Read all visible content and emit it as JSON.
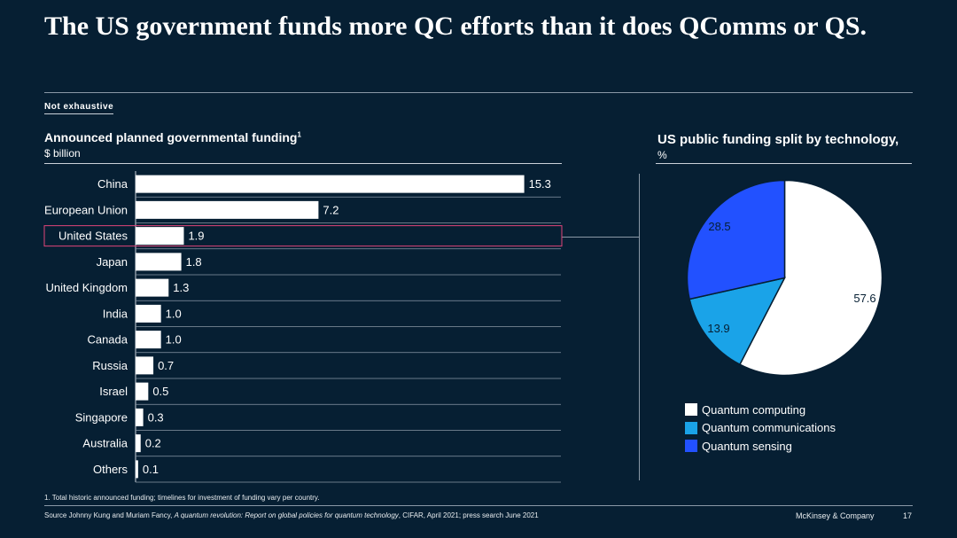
{
  "header": {
    "title": "The US government funds more QC efforts than it does QComms or QS.",
    "tag": "Not exhaustive"
  },
  "left_panel": {
    "title": "Announced planned governmental funding",
    "title_sup": "1",
    "unit": "$ billion"
  },
  "right_panel": {
    "title": "US public funding split by technology,",
    "unit": "%"
  },
  "chart_data": [
    {
      "type": "bar",
      "orientation": "horizontal",
      "title": "Announced planned governmental funding",
      "unit": "$ billion",
      "categories": [
        "China",
        "European Union",
        "United States",
        "Japan",
        "United Kingdom",
        "India",
        "Canada",
        "Russia",
        "Israel",
        "Singapore",
        "Australia",
        "Others"
      ],
      "values": [
        15.3,
        7.2,
        1.9,
        1.8,
        1.3,
        1.0,
        1.0,
        0.7,
        0.5,
        0.3,
        0.2,
        0.1
      ],
      "value_labels": [
        "15.3",
        "7.2",
        "1.9",
        "1.8",
        "1.3",
        "1.0",
        "1.0",
        "0.7",
        "0.5",
        "0.3",
        "0.2",
        "0.1"
      ],
      "highlighted": "United States",
      "bar_color": "#ffffff",
      "highlight_color": "#e0447a",
      "xlim": [
        0,
        16.5
      ]
    },
    {
      "type": "pie",
      "title": "US public funding split by technology,",
      "unit": "%",
      "series": [
        {
          "name": "Quantum computing",
          "value": 57.6,
          "label": "57.6",
          "color": "#ffffff"
        },
        {
          "name": "Quantum communications",
          "value": 13.9,
          "label": "13.9",
          "color": "#1aa3e8"
        },
        {
          "name": "Quantum sensing",
          "value": 28.5,
          "label": "28.5",
          "color": "#2251ff"
        }
      ]
    }
  ],
  "footer": {
    "footnote": "1. Total historic announced funding; timelines for investment of funding vary per country.",
    "source_prefix": "Source Johnny Kung and Muriam Fancy, ",
    "source_italic": "A quantum revolution: Report on global policies for quantum technology",
    "source_suffix": ", CIFAR, April 2021; press search June 2021",
    "brand": "McKinsey & Company",
    "page": "17"
  }
}
